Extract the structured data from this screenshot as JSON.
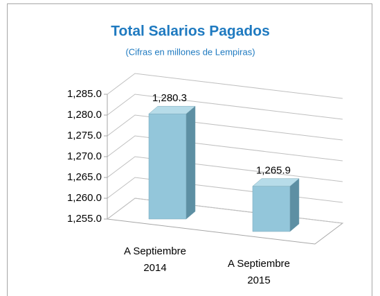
{
  "chart_data": {
    "type": "bar3d",
    "title": "Total Salarios Pagados",
    "subtitle": "(Cifras en millones de Lempiras)",
    "categories": [
      "A Septiembre 2014",
      "A Septiembre 2015"
    ],
    "values": [
      1280.3,
      1265.9
    ],
    "value_labels": [
      "1,280.3",
      "1,265.9"
    ],
    "color": "#93c6da",
    "ylim": [
      1255,
      1285
    ],
    "yticks": [
      {
        "value": 1255,
        "label": "1,255.0"
      },
      {
        "value": 1260,
        "label": "1,260.0"
      },
      {
        "value": 1265,
        "label": "1,265.0"
      },
      {
        "value": 1270,
        "label": "1,270.0"
      },
      {
        "value": 1275,
        "label": "1,275.0"
      },
      {
        "value": 1280,
        "label": "1,280.0"
      },
      {
        "value": 1285,
        "label": "1,285.0"
      }
    ],
    "grid": true
  }
}
